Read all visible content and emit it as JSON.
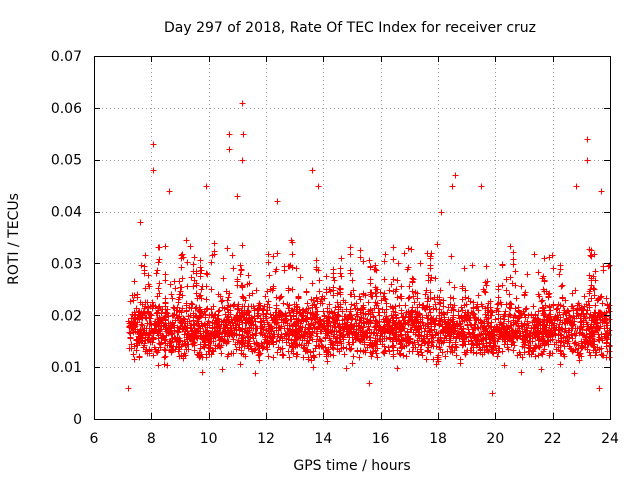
{
  "chart_data": {
    "type": "scatter",
    "title": "Day 297 of 2018, Rate Of TEC Index for receiver cruz",
    "xlabel": "GPS time / hours",
    "ylabel": "ROTI / TECUs",
    "xlim": [
      6,
      24
    ],
    "ylim": [
      0,
      0.07
    ],
    "xticks": [
      6,
      8,
      10,
      12,
      14,
      16,
      18,
      20,
      22,
      24
    ],
    "yticks": [
      0,
      0.01,
      0.02,
      0.03,
      0.04,
      0.05,
      0.06,
      0.07
    ],
    "xtick_labels": [
      "6",
      "8",
      "10",
      "12",
      "14",
      "16",
      "18",
      "20",
      "22",
      "24"
    ],
    "ytick_labels": [
      "0",
      "0.01",
      "0.02",
      "0.03",
      "0.04",
      "0.05",
      "0.06",
      "0.07"
    ],
    "grid": true,
    "marker": "+",
    "marker_color": "#ff0000",
    "x_data_start": 7.2,
    "x_data_end": 24.0,
    "typical_range": [
      0.008,
      0.03
    ],
    "notable_points": [
      {
        "x": 7.2,
        "y": 0.006
      },
      {
        "x": 7.6,
        "y": 0.038
      },
      {
        "x": 8.05,
        "y": 0.053
      },
      {
        "x": 8.05,
        "y": 0.048
      },
      {
        "x": 8.6,
        "y": 0.044
      },
      {
        "x": 9.9,
        "y": 0.045
      },
      {
        "x": 10.7,
        "y": 0.055
      },
      {
        "x": 10.7,
        "y": 0.052
      },
      {
        "x": 11.15,
        "y": 0.061
      },
      {
        "x": 11.2,
        "y": 0.055
      },
      {
        "x": 11.15,
        "y": 0.05
      },
      {
        "x": 11.0,
        "y": 0.043
      },
      {
        "x": 12.4,
        "y": 0.042
      },
      {
        "x": 13.6,
        "y": 0.048
      },
      {
        "x": 13.8,
        "y": 0.045
      },
      {
        "x": 15.6,
        "y": 0.007
      },
      {
        "x": 18.1,
        "y": 0.04
      },
      {
        "x": 18.6,
        "y": 0.047
      },
      {
        "x": 18.5,
        "y": 0.045
      },
      {
        "x": 19.5,
        "y": 0.045
      },
      {
        "x": 19.9,
        "y": 0.005
      },
      {
        "x": 22.8,
        "y": 0.045
      },
      {
        "x": 23.2,
        "y": 0.054
      },
      {
        "x": 23.2,
        "y": 0.05
      },
      {
        "x": 23.6,
        "y": 0.006
      },
      {
        "x": 23.7,
        "y": 0.044
      }
    ]
  }
}
